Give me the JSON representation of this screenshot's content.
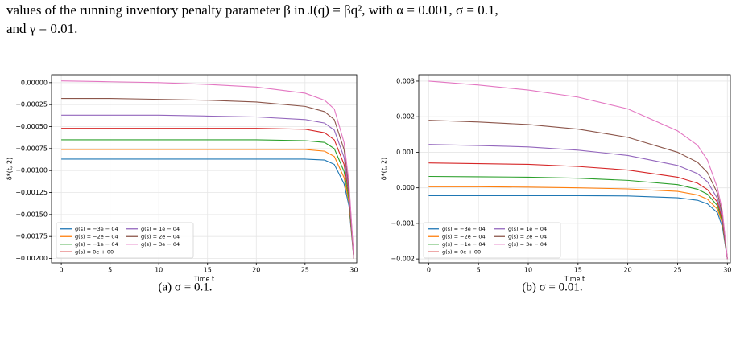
{
  "paragraph": [
    "values of the running inventory penalty parameter β in J(q) = βq², with α = 0.001, σ = 0.1,",
    "and γ = 0.01."
  ],
  "chart_data": [
    {
      "type": "line",
      "caption": "(a) σ = 0.1.",
      "xlabel": "Time t",
      "ylabel": "δ*(t, 2)",
      "grid": true,
      "legend": "lower left",
      "x": [
        0,
        5,
        10,
        15,
        20,
        25,
        27,
        28,
        29,
        29.5,
        30
      ],
      "xlim": [
        -1,
        30.3
      ],
      "xticks": [
        0,
        5,
        10,
        15,
        20,
        25,
        30
      ],
      "ylim": [
        -0.00205,
        9e-05
      ],
      "yticks": [
        {
          "value": 0,
          "label": "0.00000"
        },
        {
          "value": -0.00025,
          "label": "−0.00025"
        },
        {
          "value": -0.0005,
          "label": "−0.00050"
        },
        {
          "value": -0.00075,
          "label": "−0.00075"
        },
        {
          "value": -0.001,
          "label": "−0.00100"
        },
        {
          "value": -0.00125,
          "label": "−0.00125"
        },
        {
          "value": -0.0015,
          "label": "−0.00150"
        },
        {
          "value": -0.00175,
          "label": "−0.00175"
        },
        {
          "value": -0.002,
          "label": "−0.00200"
        }
      ],
      "series": [
        {
          "name": "g(s) = −3e − 04",
          "color": "#1f77b4",
          "values": [
            -0.00087,
            -0.00087,
            -0.00087,
            -0.00087,
            -0.00087,
            -0.00087,
            -0.00088,
            -0.00093,
            -0.00115,
            -0.0014,
            -0.002
          ]
        },
        {
          "name": "g(s) = −2e − 04",
          "color": "#ff7f0e",
          "values": [
            -0.00076,
            -0.00076,
            -0.00076,
            -0.00076,
            -0.00076,
            -0.00076,
            -0.00078,
            -0.00084,
            -0.00108,
            -0.00136,
            -0.002
          ]
        },
        {
          "name": "g(s) = −1e − 04",
          "color": "#2ca02c",
          "values": [
            -0.00065,
            -0.00065,
            -0.00065,
            -0.00065,
            -0.00065,
            -0.00066,
            -0.00068,
            -0.00075,
            -0.00101,
            -0.00132,
            -0.002
          ]
        },
        {
          "name": "g(s) = 0e + 00",
          "color": "#d62728",
          "values": [
            -0.00052,
            -0.00052,
            -0.00052,
            -0.00052,
            -0.00052,
            -0.00053,
            -0.00057,
            -0.00065,
            -0.00093,
            -0.00127,
            -0.002
          ]
        },
        {
          "name": "g(s) = 1e − 04",
          "color": "#9467bd",
          "values": [
            -0.00037,
            -0.00037,
            -0.00037,
            -0.00038,
            -0.00039,
            -0.00042,
            -0.00046,
            -0.00054,
            -0.00085,
            -0.00123,
            -0.002
          ]
        },
        {
          "name": "g(s) = 2e − 04",
          "color": "#8c564b",
          "values": [
            -0.00018,
            -0.00018,
            -0.00019,
            -0.0002,
            -0.00022,
            -0.00027,
            -0.00033,
            -0.00042,
            -0.00076,
            -0.00118,
            -0.002
          ]
        },
        {
          "name": "g(s) = 3e − 04",
          "color": "#e377c2",
          "values": [
            2e-05,
            1e-05,
            0,
            -2e-05,
            -5e-05,
            -0.00012,
            -0.0002,
            -0.0003,
            -0.00068,
            -0.00113,
            -0.002
          ]
        }
      ]
    },
    {
      "type": "line",
      "caption": "(b) σ = 0.01.",
      "xlabel": "Time t",
      "ylabel": "δ*(t, 2)",
      "grid": true,
      "legend": "lower left",
      "x": [
        0,
        5,
        10,
        15,
        20,
        25,
        27,
        28,
        29,
        29.5,
        30
      ],
      "xlim": [
        -1,
        30.3
      ],
      "xticks": [
        0,
        5,
        10,
        15,
        20,
        25,
        30
      ],
      "ylim": [
        -0.00211,
        0.00318
      ],
      "yticks": [
        {
          "value": -0.002,
          "label": "−0.002"
        },
        {
          "value": -0.001,
          "label": "−0.001"
        },
        {
          "value": 0,
          "label": "0.000"
        },
        {
          "value": 0.001,
          "label": "0.001"
        },
        {
          "value": 0.002,
          "label": "0.002"
        },
        {
          "value": 0.003,
          "label": "0.003"
        }
      ],
      "series": [
        {
          "name": "g(s) = −3e − 04",
          "color": "#1f77b4",
          "values": [
            -0.00022,
            -0.00022,
            -0.00022,
            -0.00022,
            -0.00023,
            -0.00028,
            -0.00035,
            -0.00045,
            -0.0007,
            -0.0011,
            -0.002
          ]
        },
        {
          "name": "g(s) = −2e − 04",
          "color": "#ff7f0e",
          "values": [
            3e-05,
            3e-05,
            2e-05,
            0,
            -3e-05,
            -0.0001,
            -0.0002,
            -0.00032,
            -0.0006,
            -0.001,
            -0.002
          ]
        },
        {
          "name": "g(s) = −1e − 04",
          "color": "#2ca02c",
          "values": [
            0.00032,
            0.00031,
            0.0003,
            0.00027,
            0.00021,
            9e-05,
            -4e-05,
            -0.00018,
            -0.0005,
            -0.00095,
            -0.002
          ]
        },
        {
          "name": "g(s) = 0e + 00",
          "color": "#d62728",
          "values": [
            0.0007,
            0.00068,
            0.00066,
            0.0006,
            0.0005,
            0.0003,
            0.00013,
            -5e-05,
            -0.0004,
            -0.0009,
            -0.002
          ]
        },
        {
          "name": "g(s) = 1e − 04",
          "color": "#9467bd",
          "values": [
            0.00122,
            0.00119,
            0.00115,
            0.00106,
            0.00091,
            0.00063,
            0.0004,
            0.00017,
            -0.0003,
            -0.00082,
            -0.002
          ]
        },
        {
          "name": "g(s) = 2e − 04",
          "color": "#8c564b",
          "values": [
            0.0019,
            0.00185,
            0.00178,
            0.00165,
            0.00142,
            0.001,
            0.00072,
            0.00043,
            -0.00015,
            -0.00075,
            -0.002
          ]
        },
        {
          "name": "g(s) = 3e − 04",
          "color": "#e377c2",
          "values": [
            0.003,
            0.00289,
            0.00275,
            0.00255,
            0.00222,
            0.0016,
            0.0012,
            0.00078,
            0,
            -0.00065,
            -0.002
          ]
        }
      ]
    }
  ]
}
